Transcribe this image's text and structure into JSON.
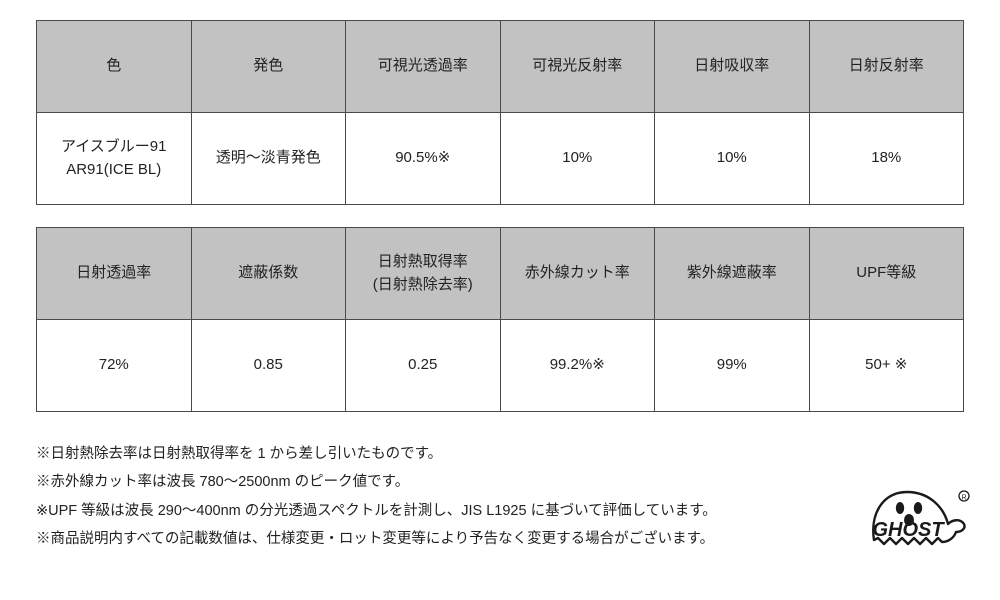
{
  "table1": {
    "headers": [
      "色",
      "発色",
      "可視光透過率",
      "可視光反射率",
      "日射吸収率",
      "日射反射率"
    ],
    "row": [
      "アイスブルー91\nAR91(ICE BL)",
      "透明～淡青発色",
      "90.5%※",
      "10%",
      "10%",
      "18%"
    ]
  },
  "table2": {
    "headers": [
      "日射透過率",
      "遮蔽係数",
      "日射熱取得率\n(日射熱除去率)",
      "赤外線カット率",
      "紫外線遮蔽率",
      "UPF等級"
    ],
    "row": [
      "72%",
      "0.85",
      "0.25",
      "99.2%※",
      "99%",
      "50+ ※"
    ]
  },
  "notes": [
    "※日射熱除去率は日射熱取得率を 1 から差し引いたものです。",
    "※赤外線カット率は波長 780～2500nm のピーク値です。",
    "※UPF 等級は波長 290～400nm の分光透過スペクトルを計測し、JIS L1925 に基づいて評価しています。",
    "※商品説明内すべての記載数値は、仕様変更・ロット変更等により予告なく変更する場合がございます。"
  ],
  "logo_text": "GHOST",
  "colors": {
    "header_bg": "#c2c2c2",
    "border": "#4a4a4a",
    "text": "#222222",
    "bg": "#ffffff"
  }
}
